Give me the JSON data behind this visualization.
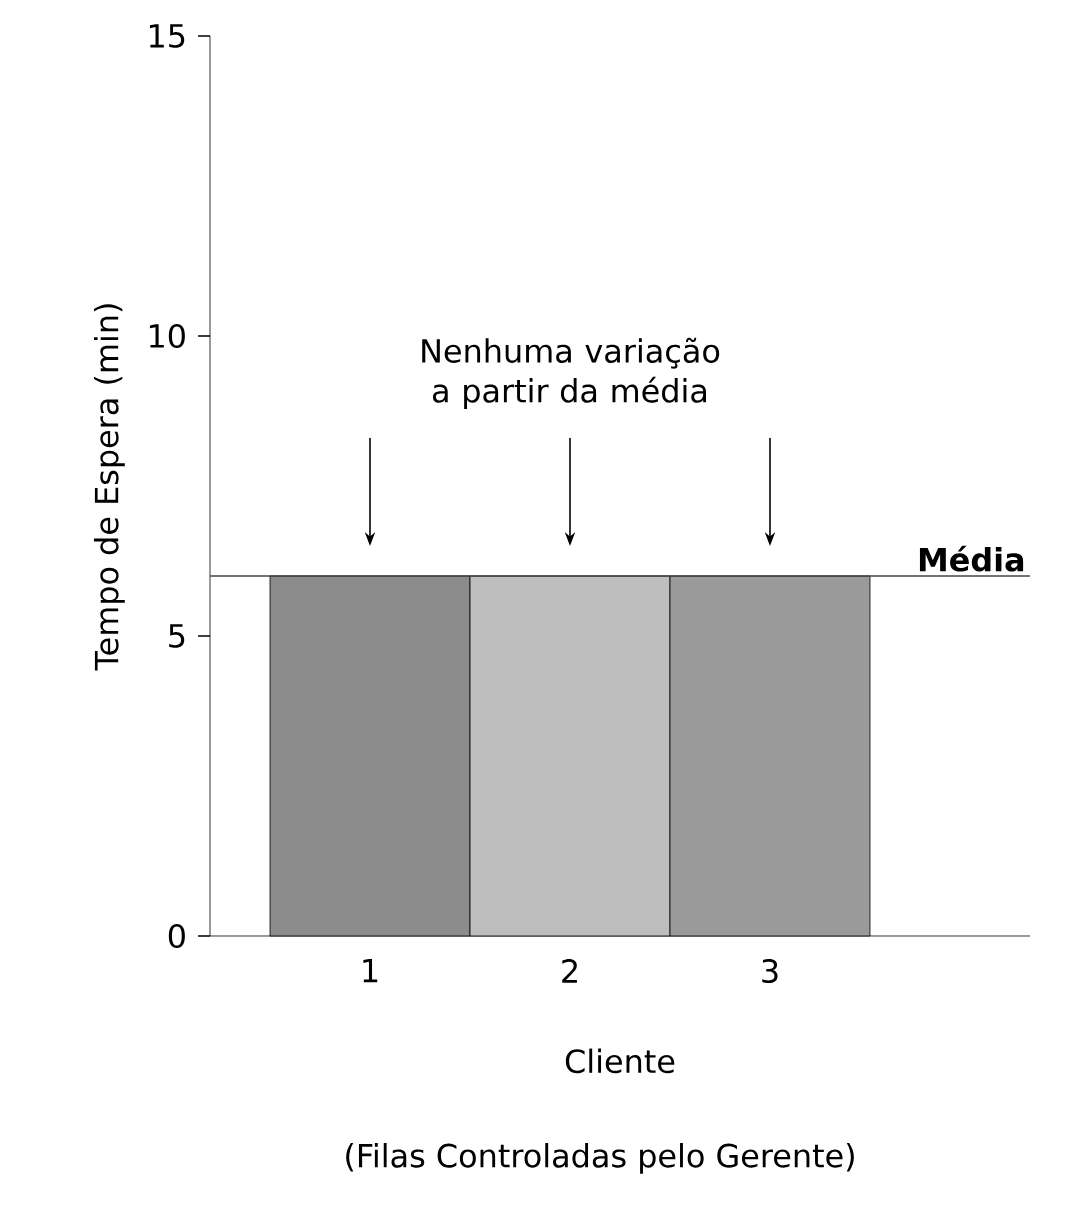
{
  "chart_data": {
    "type": "bar",
    "categories": [
      "1",
      "2",
      "3"
    ],
    "values": [
      6,
      6,
      6
    ],
    "colors": [
      "#8c8c8c",
      "#bdbdbd",
      "#9a9a9a"
    ],
    "ylim": [
      0,
      15
    ],
    "yticks": [
      0,
      5,
      10,
      15
    ],
    "xlabel": "Cliente",
    "ylabel": "Tempo de Espera (min)",
    "ref_lines": [
      {
        "axis": "y",
        "value": 6,
        "label": "Média",
        "color": "#444444"
      }
    ],
    "annotations": [
      "Nenhuma variação a partir da média",
      "(Filas Controladas pelo Gerente)"
    ]
  }
}
